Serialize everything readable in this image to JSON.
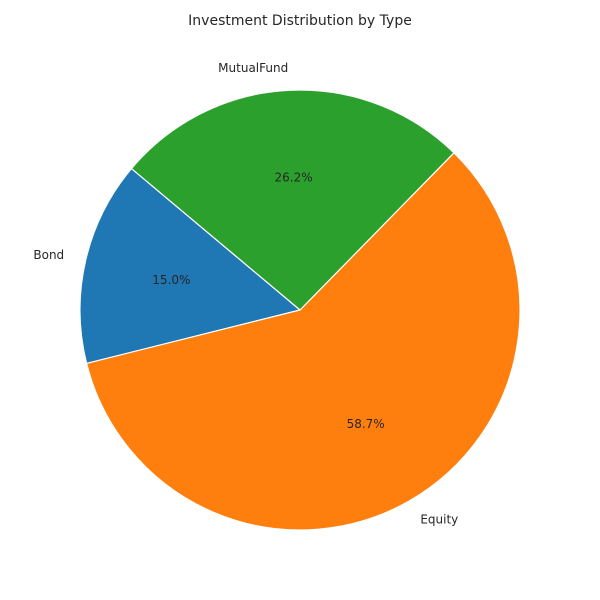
{
  "chart_data": {
    "type": "pie",
    "title": "Investment Distribution by Type",
    "categories": [
      "Bond",
      "Equity",
      "MutualFund"
    ],
    "values": [
      15.0,
      58.7,
      26.2
    ],
    "percent_labels": [
      "15.0%",
      "58.7%",
      "26.2%"
    ],
    "colors": [
      "#1f77b4",
      "#ff7f0e",
      "#2ca02c"
    ],
    "start_angle_deg": 140,
    "direction": "counterclockwise",
    "legend": "none"
  }
}
